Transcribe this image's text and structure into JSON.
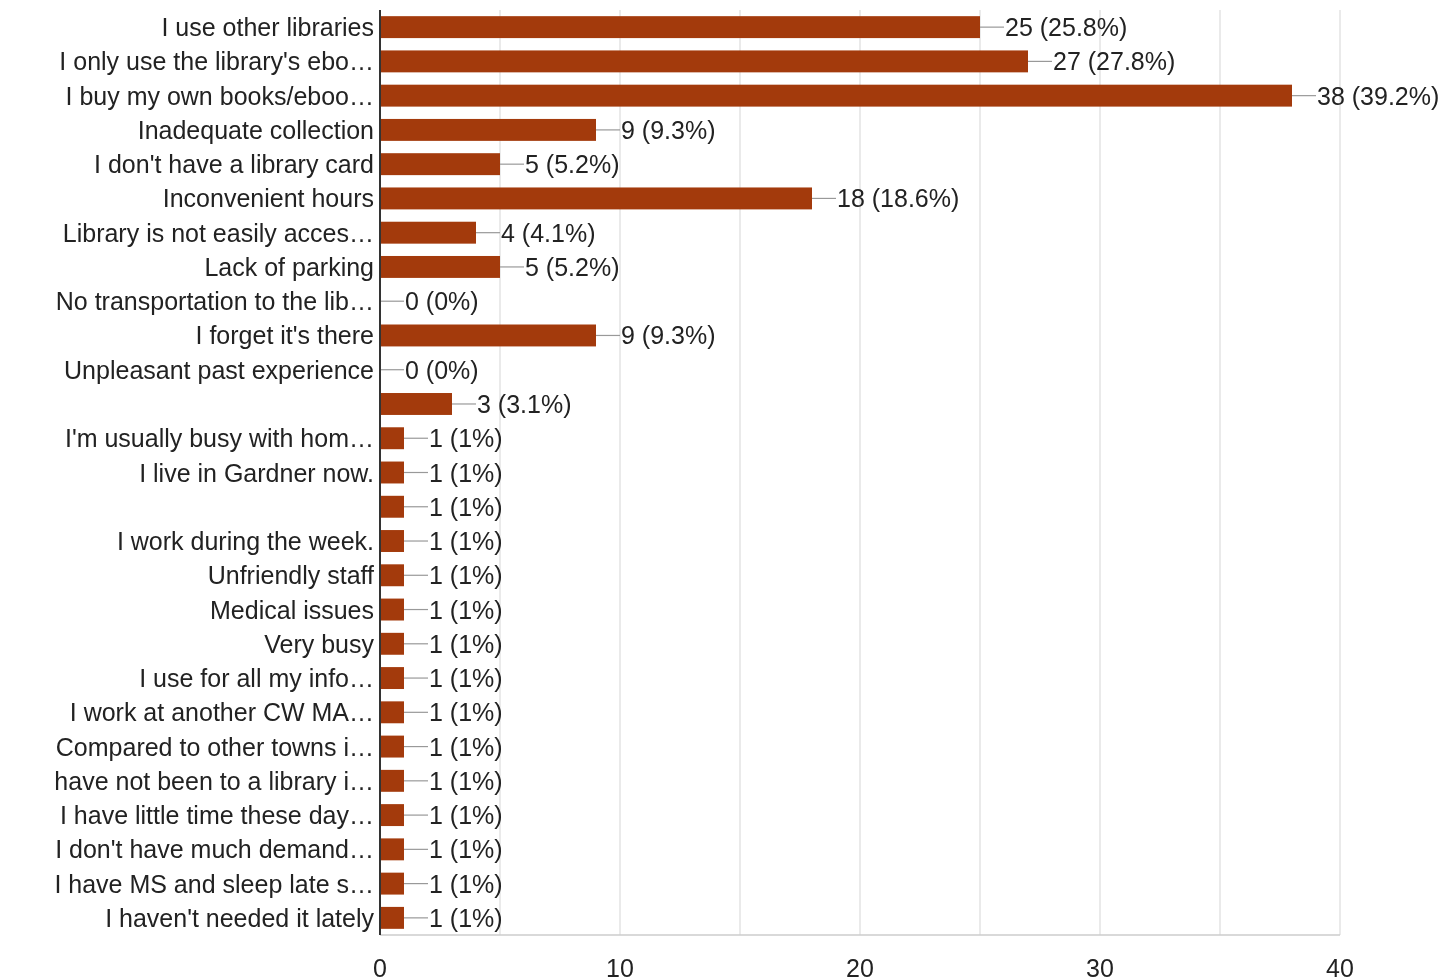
{
  "chart_data": {
    "type": "bar",
    "orientation": "horizontal",
    "categories": [
      "I use other libraries",
      "I only use the library's ebo…",
      "I buy my own books/eboo…",
      "Inadequate collection",
      "I don't have a library card",
      "Inconvenient hours",
      "Library is not easily acces…",
      "Lack of parking",
      "No transportation to the lib…",
      "I forget it's there",
      "Unpleasant past experience",
      null,
      "I'm usually busy with hom…",
      "I live in Gardner now.",
      null,
      "I work during the week.",
      "Unfriendly staff",
      "Medical issues",
      "Very busy",
      "I use for all my info…",
      "I work at another CW MA…",
      "Compared to other towns i…",
      "have not been to a library i…",
      "I have little time these day…",
      "I don't have much demand…",
      "I have MS and sleep late s…",
      "I haven't needed it lately"
    ],
    "values": [
      25,
      27,
      38,
      9,
      5,
      18,
      4,
      5,
      0,
      9,
      0,
      3,
      1,
      1,
      1,
      1,
      1,
      1,
      1,
      1,
      1,
      1,
      1,
      1,
      1,
      1,
      1
    ],
    "value_labels": [
      "25 (25.8%)",
      "27 (27.8%)",
      "38 (39.2%)",
      "9 (9.3%)",
      "5 (5.2%)",
      "18 (18.6%)",
      "4 (4.1%)",
      "5 (5.2%)",
      "0 (0%)",
      "9 (9.3%)",
      "0 (0%)",
      "3 (3.1%)",
      "1 (1%)",
      "1 (1%)",
      "1 (1%)",
      "1 (1%)",
      "1 (1%)",
      "1 (1%)",
      "1 (1%)",
      "1 (1%)",
      "1 (1%)",
      "1 (1%)",
      "1 (1%)",
      "1 (1%)",
      "1 (1%)",
      "1 (1%)",
      "1 (1%)"
    ],
    "color": "#a33a0c",
    "xlim": [
      0,
      40
    ],
    "xticks": [
      0,
      {
        "value": 5,
        "label": null
      },
      10,
      {
        "value": 15,
        "label": null
      },
      20,
      {
        "value": 25,
        "label": null
      },
      30,
      {
        "value": 35,
        "label": null
      },
      40
    ],
    "grid": "x"
  }
}
